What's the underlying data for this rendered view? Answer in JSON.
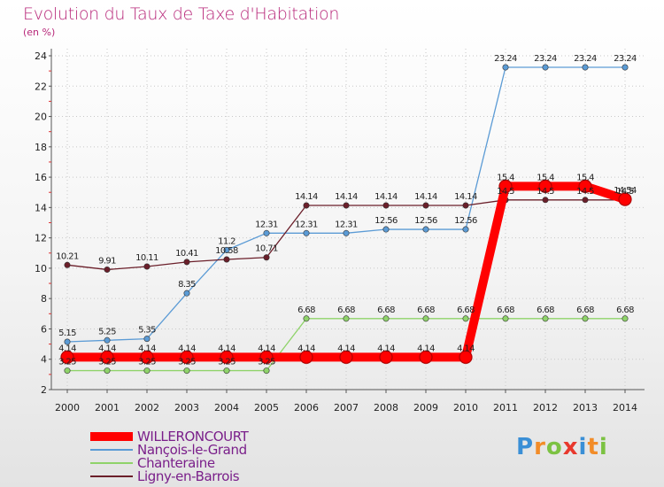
{
  "header": {
    "title": "Evolution du Taux de Taxe d'Habitation",
    "unit": "(en %)"
  },
  "colors": {
    "title": "#b8287a",
    "willeroncourt": "#ff0000",
    "nancois": "#5b9bd5",
    "chanteraine": "#8fd36a",
    "ligny": "#6b1f2a",
    "grid": "#c8c8c8"
  },
  "logo": {
    "letters": [
      "P",
      "r",
      "o",
      "x",
      "i",
      "t",
      "i"
    ],
    "colors": [
      "#3a8fd6",
      "#f28c28",
      "#7cc242",
      "#e8382d",
      "#3a8fd6",
      "#f28c28",
      "#7cc242"
    ]
  },
  "chart_data": {
    "type": "line",
    "title": "Evolution du Taux de Taxe d'Habitation",
    "ylabel": "(en %)",
    "ylim": [
      2,
      24
    ],
    "yticks": [
      2,
      4,
      6,
      8,
      10,
      12,
      14,
      16,
      18,
      20,
      22,
      24
    ],
    "grid": true,
    "legend_position": "bottom-left",
    "categories": [
      "2000",
      "2001",
      "2002",
      "2003",
      "2004",
      "2005",
      "2006",
      "2007",
      "2008",
      "2009",
      "2010",
      "2011",
      "2012",
      "2013",
      "2014"
    ],
    "series": [
      {
        "name": "WILLERONCOURT",
        "key": "willeroncourt",
        "values": [
          4.14,
          4.14,
          4.14,
          4.14,
          4.14,
          4.14,
          4.14,
          4.14,
          4.14,
          4.14,
          4.14,
          15.4,
          15.4,
          15.4,
          14.54
        ],
        "labels": [
          "4.14",
          "4.14",
          "4.14",
          "4.14",
          "4.14",
          "4.14",
          "4.14",
          "4.14",
          "4.14",
          "4.14",
          "4.14",
          "15.4",
          "15.4",
          "15.4",
          "14.54"
        ]
      },
      {
        "name": "Nançois-le-Grand",
        "key": "nancois",
        "values": [
          5.15,
          5.25,
          5.35,
          8.35,
          11.2,
          12.31,
          12.31,
          12.31,
          12.56,
          12.56,
          12.56,
          23.24,
          23.24,
          23.24,
          23.24
        ],
        "labels": [
          "5.15",
          "5.25",
          "5.35",
          "8.35",
          "11.2",
          "12.31",
          "12.31",
          "12.31",
          "12.56",
          "12.56",
          "12.56",
          "23.24",
          "23.24",
          "23.24",
          "23.24"
        ]
      },
      {
        "name": "Chanteraine",
        "key": "chanteraine",
        "values": [
          3.25,
          3.25,
          3.25,
          3.25,
          3.25,
          3.25,
          6.68,
          6.68,
          6.68,
          6.68,
          6.68,
          6.68,
          6.68,
          6.68,
          6.68
        ],
        "labels": [
          "3.25",
          "3.25",
          "3.25",
          "3.25",
          "3.25",
          "3.25",
          "6.68",
          "6.68",
          "6.68",
          "6.68",
          "6.68",
          "6.68",
          "6.68",
          "6.68",
          "6.68"
        ]
      },
      {
        "name": "Ligny-en-Barrois",
        "key": "ligny",
        "values": [
          10.21,
          9.91,
          10.11,
          10.41,
          10.58,
          10.71,
          14.14,
          14.14,
          14.14,
          14.14,
          14.14,
          14.5,
          14.5,
          14.5,
          14.5
        ],
        "labels": [
          "10.21",
          "9.91",
          "10.11",
          "10.41",
          "10.58",
          "10.71",
          "14.14",
          "14.14",
          "14.14",
          "14.14",
          "14.14",
          "14.5",
          "14.5",
          "14.5",
          "14.5"
        ]
      }
    ]
  }
}
